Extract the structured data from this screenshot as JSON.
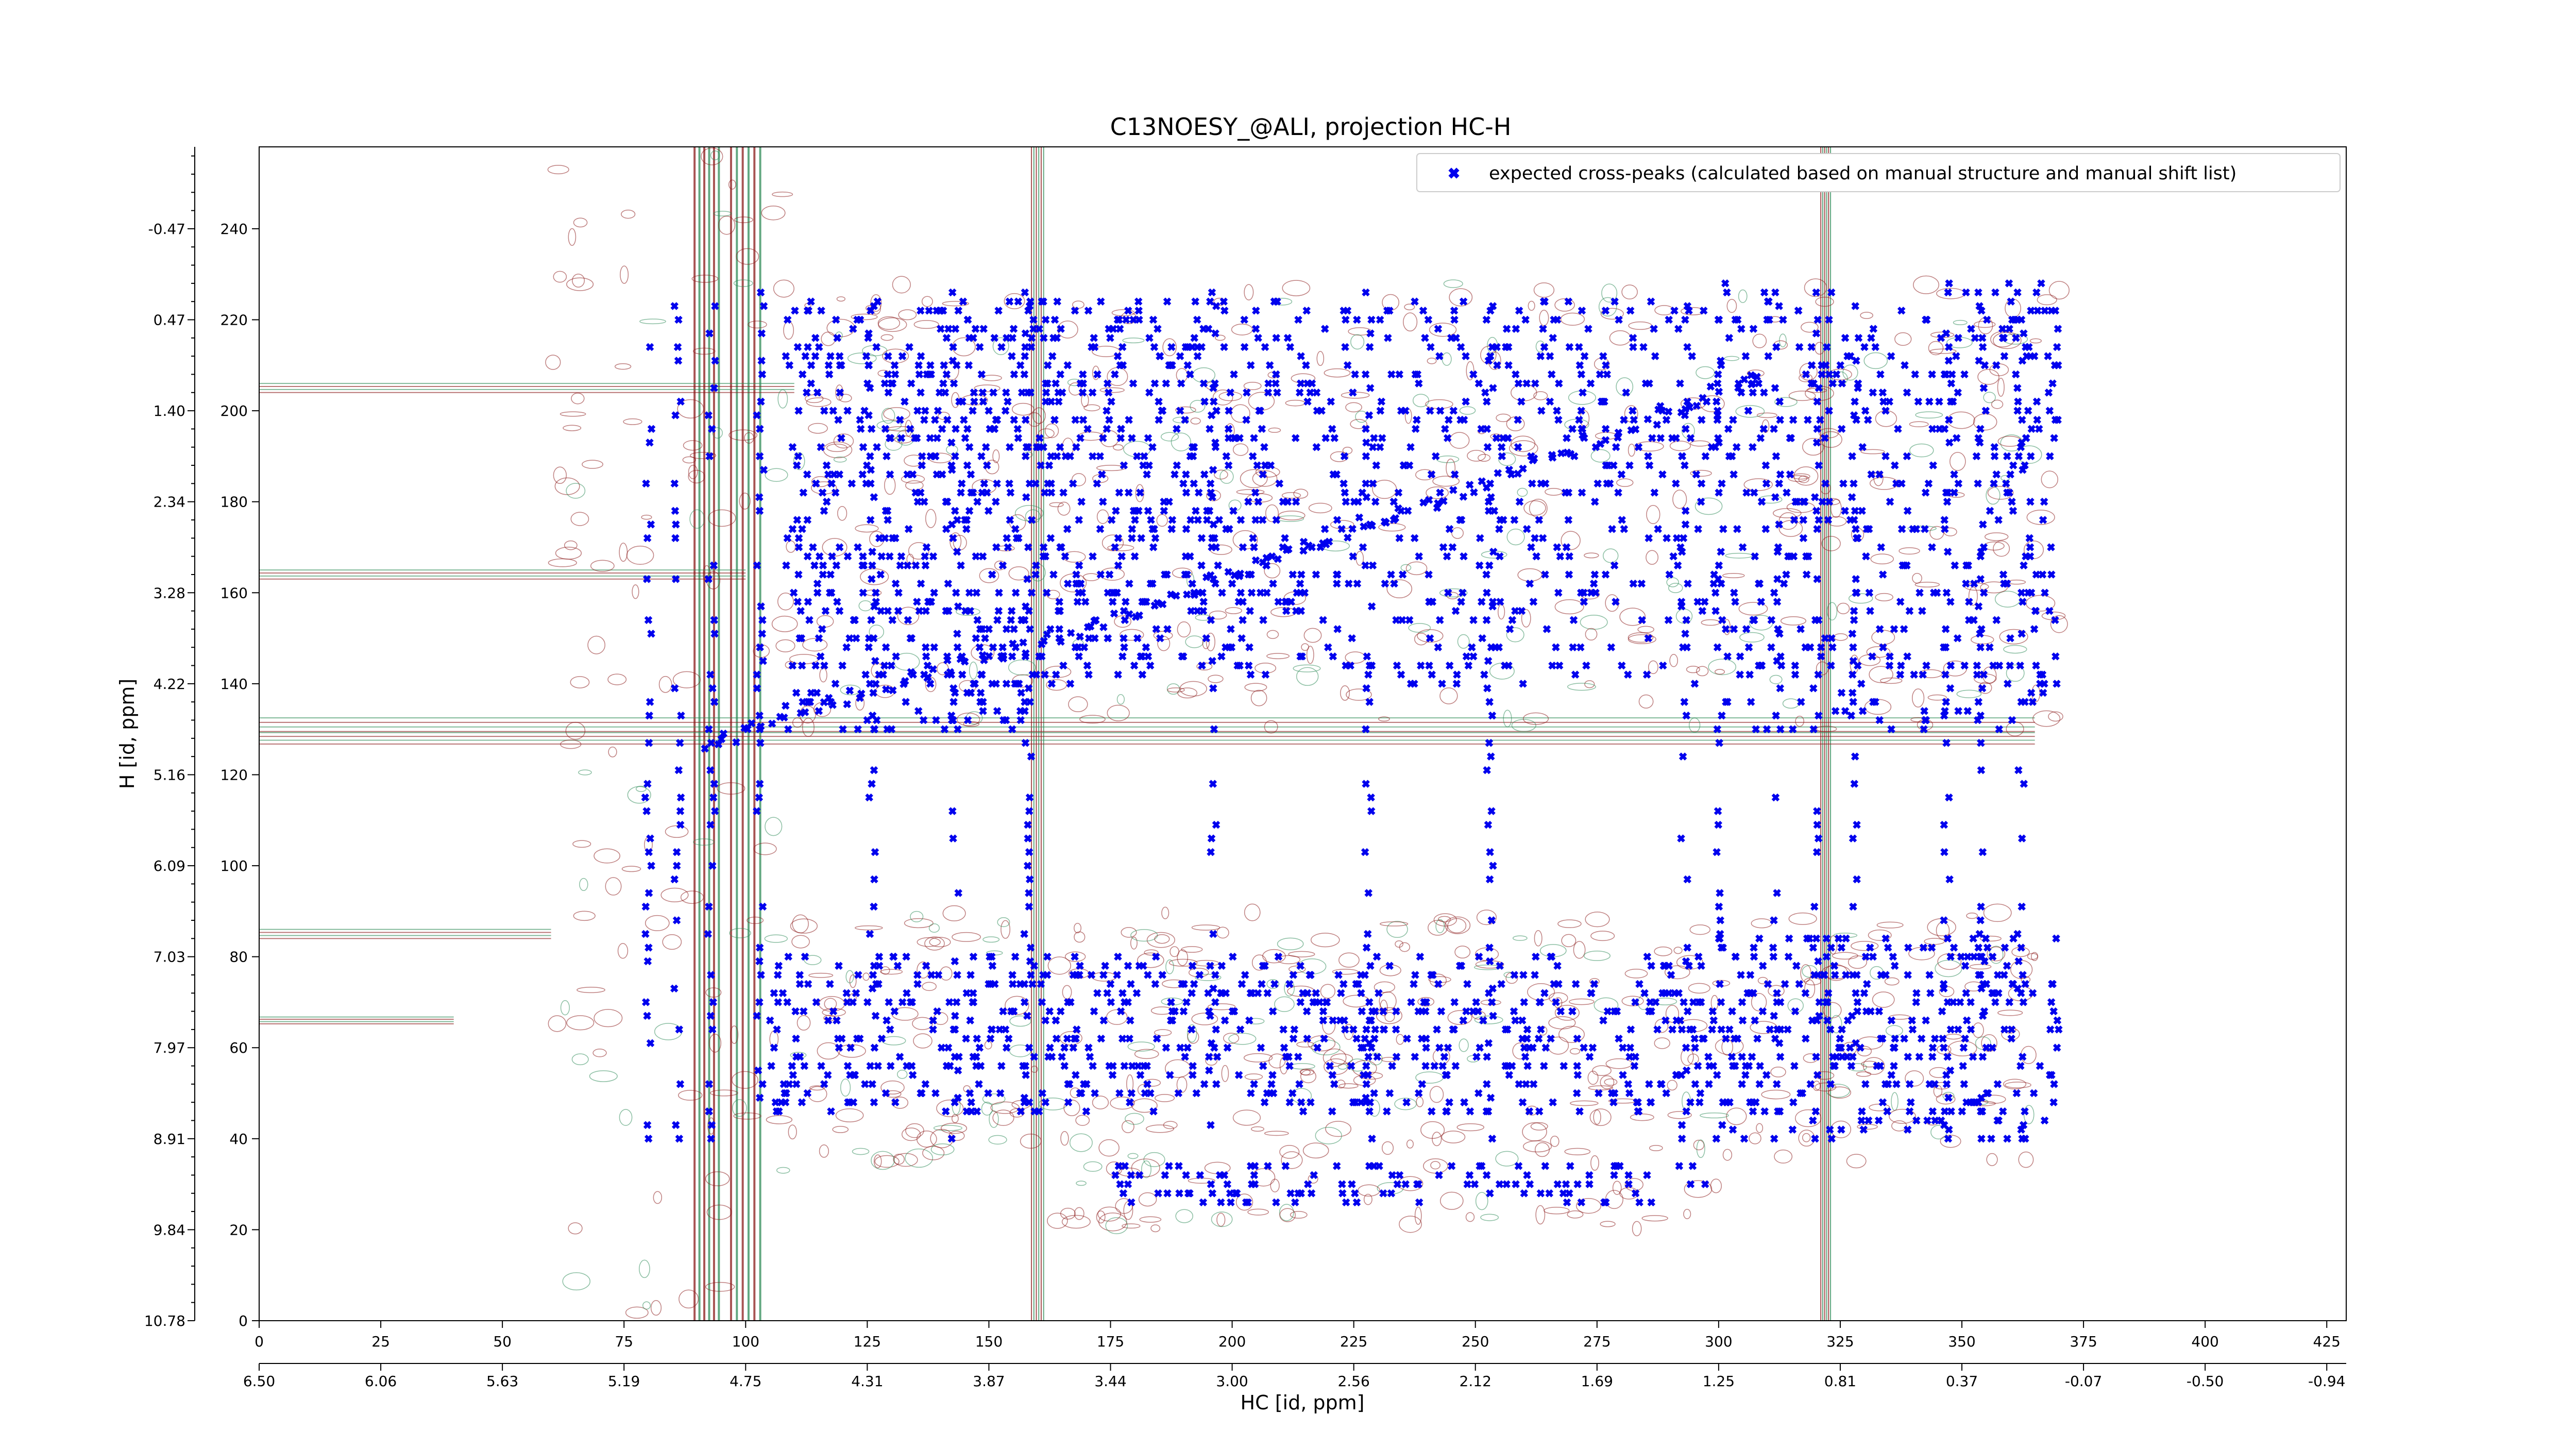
{
  "chart_data": {
    "type": "scatter",
    "title": "C13NOESY_@ALI, projection HC-H",
    "xlabel": "HC [id, ppm]",
    "ylabel": "H [id, ppm]",
    "xlim": [
      0,
      429
    ],
    "ylim": [
      0,
      258
    ],
    "x_ticks": [
      0,
      25,
      50,
      75,
      100,
      125,
      150,
      175,
      200,
      225,
      250,
      275,
      300,
      325,
      350,
      375,
      400,
      425
    ],
    "x_tick_labels": [
      "0",
      "25",
      "50",
      "75",
      "100",
      "125",
      "150",
      "175",
      "200",
      "225",
      "250",
      "275",
      "300",
      "325",
      "350",
      "375",
      "400",
      "425"
    ],
    "x2_tick_labels": [
      "6.50",
      "6.06",
      "5.63",
      "5.19",
      "4.75",
      "4.31",
      "3.87",
      "3.44",
      "3.00",
      "2.56",
      "2.12",
      "1.69",
      "1.25",
      "0.81",
      "0.37",
      "-0.07",
      "-0.50",
      "-0.94"
    ],
    "y_ticks": [
      0,
      20,
      40,
      60,
      80,
      100,
      120,
      140,
      160,
      180,
      200,
      220,
      240
    ],
    "y_tick_labels": [
      "0",
      "20",
      "40",
      "60",
      "80",
      "100",
      "120",
      "140",
      "160",
      "180",
      "200",
      "220",
      "240"
    ],
    "y2_tick_labels": [
      "10.78",
      "9.84",
      "8.91",
      "7.97",
      "7.03",
      "6.09",
      "5.16",
      "4.22",
      "3.28",
      "2.34",
      "1.40",
      "0.47",
      "-0.47"
    ],
    "legend": {
      "position": "top-right",
      "label": "expected cross-peaks (calculated based on manual structure and manual shift list)"
    },
    "colors": {
      "points": "#0000ee",
      "contour_positive": "#8b1a1a",
      "contour_negative": "#2e8b57"
    },
    "series": [
      {
        "name": "expected cross-peaks (calculated based on manual structure and manual shift list)",
        "points_note_diagonal": [
          [
            92,
            126
          ],
          [
            110,
            134
          ],
          [
            130,
            140
          ],
          [
            150,
            146
          ],
          [
            170,
            152
          ],
          [
            190,
            160
          ],
          [
            210,
            168
          ],
          [
            230,
            176
          ],
          [
            250,
            183
          ],
          [
            270,
            192
          ],
          [
            290,
            200
          ],
          [
            310,
            208
          ]
        ],
        "clusters": [
          {
            "x": [
              108,
              160
            ],
            "y": [
              150,
              225
            ]
          },
          {
            "x": [
              108,
              160
            ],
            "y": [
              130,
              150
            ]
          },
          {
            "x": [
              160,
              210
            ],
            "y": [
              140,
              225
            ]
          },
          {
            "x": [
              210,
              300
            ],
            "y": [
              140,
              225
            ]
          },
          {
            "x": [
              300,
              370
            ],
            "y": [
              130,
              228
            ]
          },
          {
            "x": [
              105,
              160
            ],
            "y": [
              45,
              80
            ]
          },
          {
            "x": [
              160,
              220
            ],
            "y": [
              45,
              80
            ]
          },
          {
            "x": [
              220,
              300
            ],
            "y": [
              45,
              80
            ]
          },
          {
            "x": [
              300,
              370
            ],
            "y": [
              40,
              85
            ]
          },
          {
            "x": [
              175,
              300
            ],
            "y": [
              25,
              35
            ]
          }
        ],
        "columns": [
          80,
          86,
          93,
          103,
          126,
          143,
          158,
          196,
          228,
          253,
          293,
          300,
          312,
          320,
          328,
          347,
          354,
          362
        ]
      }
    ]
  }
}
